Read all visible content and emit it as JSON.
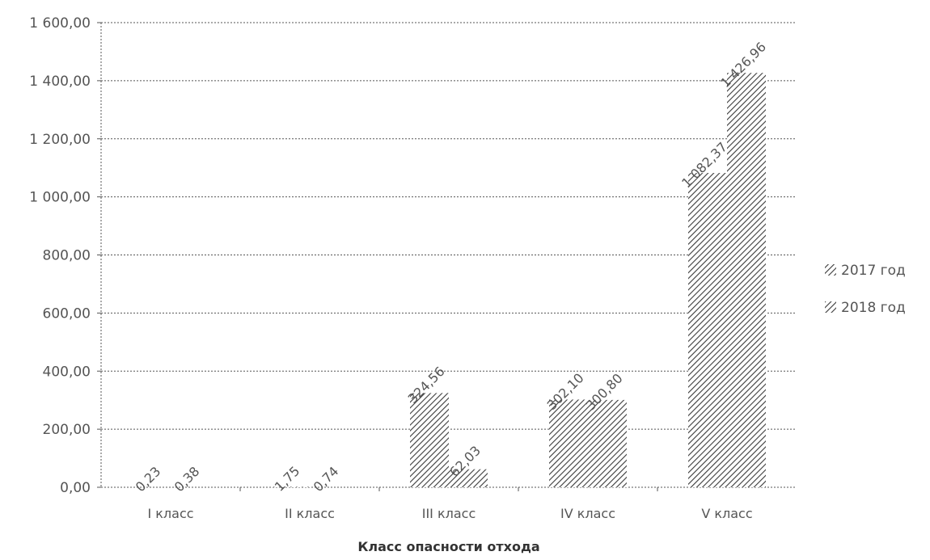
{
  "chart_data": {
    "type": "bar",
    "categories": [
      "I класс",
      "II класс",
      "III класс",
      "IV класс",
      "V класс"
    ],
    "series": [
      {
        "name": "2017 год",
        "values": [
          0.23,
          1.75,
          324.56,
          302.1,
          1082.37
        ]
      },
      {
        "name": "2018 год",
        "values": [
          0.38,
          0.74,
          62.03,
          300.8,
          1426.96
        ]
      }
    ],
    "data_labels": [
      [
        "0,23",
        "1,75",
        "324,56",
        "302,10",
        "1 082,37"
      ],
      [
        "0,38",
        "0,74",
        "62,03",
        "300,80",
        "1 426,96"
      ]
    ],
    "xlabel": "Класс опасности отхода",
    "ylabel": "",
    "ylim": [
      0,
      1600
    ],
    "yticks": [
      0,
      200,
      400,
      600,
      800,
      1000,
      1200,
      1400,
      1600
    ],
    "ytick_labels": [
      "0,00",
      "200,00",
      "400,00",
      "600,00",
      "800,00",
      "1 000,00",
      "1 200,00",
      "1 400,00",
      "1 600,00"
    ],
    "grid": true,
    "legend_position": "right",
    "fill": "diagonal-hatch",
    "colors": {
      "bar": "#444444",
      "text": "#555555",
      "grid": "#555555"
    }
  }
}
